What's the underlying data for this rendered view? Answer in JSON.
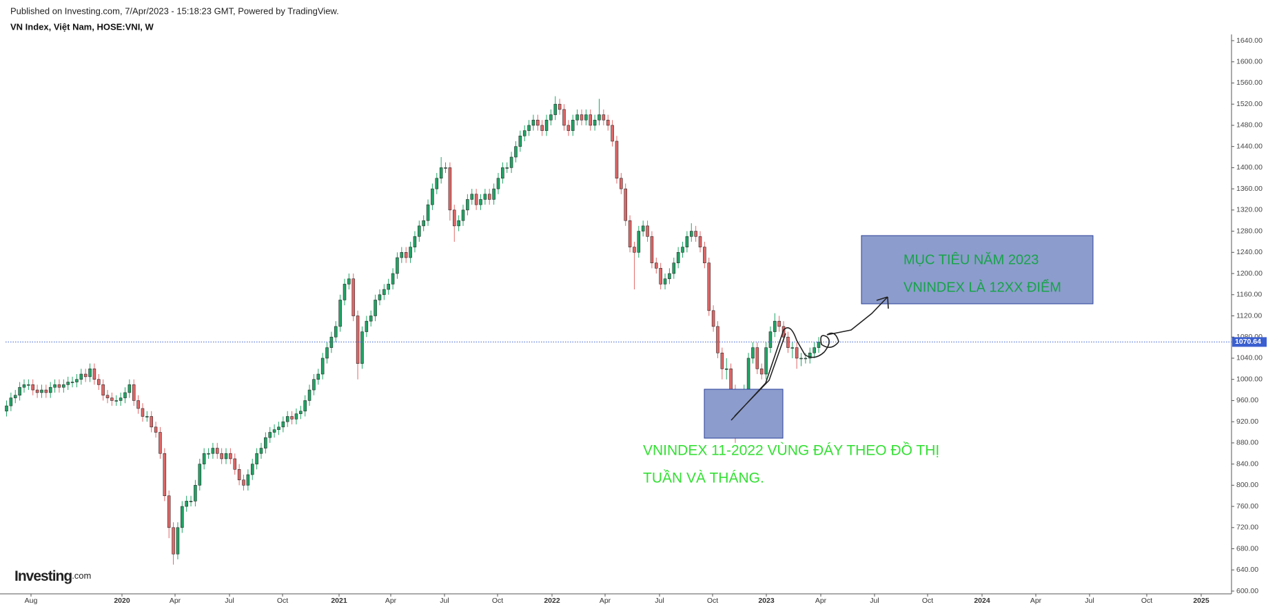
{
  "header": {
    "published": "Published on Investing.com, 7/Apr/2023 - 15:18:23 GMT, Powered by TradingView.",
    "symbol": "VN Index, Việt Nam, HOSE:VNI, W"
  },
  "logo": {
    "name": "Investing",
    "suffix": ".com"
  },
  "chart_data": {
    "type": "candlestick",
    "up_color": "#1fa464",
    "down_color": "#e06666",
    "outline_color": "#2b2b2b",
    "last_line_color": "#3a5fd0",
    "ylim": [
      600,
      1650
    ],
    "yticks": [
      {
        "value": 600,
        "label": "600.00"
      },
      {
        "value": 640,
        "label": "640.00"
      },
      {
        "value": 680,
        "label": "680.00"
      },
      {
        "value": 720,
        "label": "720.00"
      },
      {
        "value": 760,
        "label": "760.00"
      },
      {
        "value": 800,
        "label": "800.00"
      },
      {
        "value": 840,
        "label": "840.00"
      },
      {
        "value": 880,
        "label": "880.00"
      },
      {
        "value": 920,
        "label": "920.00"
      },
      {
        "value": 960,
        "label": "960.00"
      },
      {
        "value": 1000,
        "label": "1000.00"
      },
      {
        "value": 1040,
        "label": "1040.00"
      },
      {
        "value": 1080,
        "label": "1080.00"
      },
      {
        "value": 1120,
        "label": "1120.00"
      },
      {
        "value": 1160,
        "label": "1160.00"
      },
      {
        "value": 1200,
        "label": "1200.00"
      },
      {
        "value": 1240,
        "label": "1240.00"
      },
      {
        "value": 1280,
        "label": "1280.00"
      },
      {
        "value": 1320,
        "label": "1320.00"
      },
      {
        "value": 1360,
        "label": "1360.00"
      },
      {
        "value": 1400,
        "label": "1400.00"
      },
      {
        "value": 1440,
        "label": "1440.00"
      },
      {
        "value": 1480,
        "label": "1480.00"
      },
      {
        "value": 1520,
        "label": "1520.00"
      },
      {
        "value": 1560,
        "label": "1560.00"
      },
      {
        "value": 1600,
        "label": "1600.00"
      },
      {
        "value": 1640,
        "label": "1640.00"
      }
    ],
    "xtick_labels": [
      "Aug",
      "2020",
      "Apr",
      "Jul",
      "Oct",
      "2021",
      "Apr",
      "Jul",
      "Oct",
      "2022",
      "Apr",
      "Jul",
      "Oct",
      "2023",
      "Apr",
      "Jul",
      "Oct",
      "2024",
      "Apr",
      "Jul",
      "Oct",
      "2025"
    ],
    "open": [
      940,
      950,
      965,
      970,
      985,
      990,
      990,
      980,
      975,
      980,
      975,
      985,
      990,
      985,
      990,
      995,
      995,
      1000,
      1010,
      1005,
      1020,
      1000,
      990,
      970,
      965,
      960,
      960,
      965,
      975,
      990,
      960,
      945,
      930,
      930,
      910,
      900,
      860,
      780,
      720,
      670,
      720,
      760,
      770,
      770,
      800,
      840,
      860,
      860,
      870,
      860,
      850,
      860,
      850,
      830,
      810,
      800,
      820,
      840,
      860,
      870,
      890,
      900,
      905,
      910,
      920,
      930,
      925,
      935,
      940,
      960,
      980,
      1000,
      1010,
      1040,
      1060,
      1080,
      1100,
      1150,
      1180,
      1190,
      1120,
      1030,
      1090,
      1110,
      1120,
      1150,
      1160,
      1170,
      1180,
      1200,
      1230,
      1240,
      1230,
      1250,
      1270,
      1290,
      1300,
      1330,
      1360,
      1380,
      1400,
      1400,
      1320,
      1290,
      1300,
      1320,
      1340,
      1350,
      1330,
      1340,
      1350,
      1340,
      1360,
      1380,
      1400,
      1400,
      1420,
      1440,
      1460,
      1470,
      1480,
      1490,
      1480,
      1470,
      1490,
      1500,
      1520,
      1510,
      1480,
      1470,
      1490,
      1500,
      1490,
      1500,
      1480,
      1490,
      1500,
      1490,
      1480,
      1450,
      1380,
      1360,
      1300,
      1250,
      1240,
      1280,
      1290,
      1270,
      1220,
      1210,
      1180,
      1190,
      1200,
      1220,
      1240,
      1250,
      1270,
      1280,
      1270,
      1250,
      1220,
      1130,
      1100,
      1050,
      1020,
      1020,
      980,
      940,
      960,
      980,
      1040,
      1060,
      1020,
      1010,
      1060,
      1090,
      1110,
      1100,
      1080,
      1060,
      1060,
      1040,
      1040,
      1040,
      1050,
      1060
    ],
    "high": [
      960,
      975,
      980,
      995,
      1000,
      1000,
      1000,
      990,
      990,
      990,
      995,
      1000,
      1000,
      1000,
      1005,
      1005,
      1010,
      1020,
      1020,
      1030,
      1030,
      1010,
      1000,
      980,
      975,
      970,
      975,
      985,
      1000,
      1000,
      970,
      955,
      940,
      940,
      920,
      910,
      870,
      790,
      730,
      730,
      770,
      780,
      780,
      810,
      850,
      870,
      870,
      880,
      880,
      870,
      870,
      870,
      860,
      840,
      820,
      830,
      850,
      870,
      880,
      900,
      910,
      915,
      920,
      930,
      940,
      940,
      945,
      950,
      970,
      990,
      1010,
      1020,
      1050,
      1070,
      1090,
      1110,
      1160,
      1190,
      1200,
      1200,
      1130,
      1100,
      1120,
      1130,
      1160,
      1170,
      1180,
      1190,
      1210,
      1240,
      1250,
      1250,
      1260,
      1280,
      1300,
      1310,
      1340,
      1370,
      1390,
      1420,
      1410,
      1410,
      1330,
      1310,
      1330,
      1350,
      1360,
      1360,
      1350,
      1360,
      1360,
      1370,
      1390,
      1410,
      1410,
      1430,
      1450,
      1470,
      1480,
      1490,
      1500,
      1500,
      1490,
      1500,
      1510,
      1535,
      1530,
      1520,
      1490,
      1500,
      1510,
      1510,
      1510,
      1510,
      1500,
      1530,
      1510,
      1500,
      1490,
      1460,
      1390,
      1370,
      1310,
      1260,
      1290,
      1300,
      1300,
      1280,
      1230,
      1220,
      1200,
      1210,
      1230,
      1250,
      1260,
      1280,
      1295,
      1290,
      1280,
      1260,
      1230,
      1140,
      1110,
      1060,
      1040,
      1030,
      990,
      970,
      990,
      1050,
      1070,
      1070,
      1030,
      1070,
      1100,
      1125,
      1120,
      1110,
      1090,
      1070,
      1070,
      1050,
      1050,
      1060,
      1070,
      1080
    ],
    "low": [
      930,
      940,
      955,
      960,
      975,
      980,
      970,
      965,
      965,
      965,
      965,
      975,
      975,
      975,
      980,
      985,
      985,
      990,
      995,
      995,
      990,
      980,
      960,
      955,
      950,
      950,
      950,
      955,
      965,
      950,
      935,
      920,
      920,
      900,
      890,
      850,
      770,
      700,
      650,
      660,
      710,
      750,
      760,
      760,
      790,
      830,
      850,
      850,
      850,
      840,
      840,
      840,
      820,
      800,
      790,
      790,
      810,
      830,
      850,
      860,
      880,
      890,
      895,
      900,
      910,
      915,
      915,
      925,
      930,
      950,
      970,
      990,
      1000,
      1030,
      1050,
      1070,
      1090,
      1140,
      1170,
      1110,
      1000,
      1020,
      1080,
      1100,
      1110,
      1140,
      1150,
      1160,
      1170,
      1190,
      1220,
      1220,
      1220,
      1240,
      1260,
      1280,
      1290,
      1320,
      1350,
      1370,
      1390,
      1300,
      1260,
      1280,
      1290,
      1310,
      1330,
      1320,
      1320,
      1330,
      1330,
      1330,
      1350,
      1370,
      1390,
      1390,
      1410,
      1430,
      1450,
      1460,
      1470,
      1470,
      1460,
      1460,
      1480,
      1490,
      1500,
      1470,
      1460,
      1460,
      1480,
      1480,
      1480,
      1470,
      1470,
      1480,
      1480,
      1470,
      1440,
      1370,
      1350,
      1290,
      1240,
      1170,
      1230,
      1270,
      1260,
      1210,
      1200,
      1170,
      1170,
      1180,
      1190,
      1210,
      1230,
      1240,
      1260,
      1260,
      1240,
      1210,
      1120,
      1090,
      1040,
      1000,
      1000,
      960,
      880,
      930,
      950,
      970,
      1030,
      1010,
      1000,
      1000,
      1050,
      1080,
      1090,
      1070,
      1050,
      1040,
      1020,
      1025,
      1030,
      1030,
      1040,
      1050
    ],
    "close": [
      950,
      965,
      970,
      985,
      990,
      990,
      980,
      975,
      980,
      975,
      985,
      990,
      985,
      990,
      995,
      995,
      1000,
      1010,
      1005,
      1020,
      1000,
      990,
      970,
      965,
      960,
      960,
      965,
      975,
      990,
      960,
      945,
      930,
      930,
      910,
      900,
      860,
      780,
      720,
      670,
      720,
      760,
      770,
      770,
      800,
      840,
      860,
      860,
      870,
      860,
      850,
      860,
      850,
      830,
      810,
      800,
      820,
      840,
      860,
      870,
      890,
      900,
      905,
      910,
      920,
      930,
      925,
      935,
      940,
      960,
      980,
      1000,
      1010,
      1040,
      1060,
      1080,
      1100,
      1150,
      1180,
      1190,
      1120,
      1030,
      1090,
      1110,
      1120,
      1150,
      1160,
      1170,
      1180,
      1200,
      1230,
      1240,
      1230,
      1250,
      1270,
      1290,
      1300,
      1330,
      1360,
      1380,
      1400,
      1400,
      1320,
      1290,
      1300,
      1320,
      1340,
      1350,
      1330,
      1340,
      1350,
      1340,
      1360,
      1380,
      1400,
      1400,
      1420,
      1440,
      1460,
      1470,
      1480,
      1490,
      1480,
      1470,
      1490,
      1500,
      1520,
      1510,
      1480,
      1470,
      1490,
      1500,
      1490,
      1500,
      1480,
      1490,
      1500,
      1490,
      1480,
      1450,
      1380,
      1360,
      1300,
      1250,
      1240,
      1280,
      1290,
      1270,
      1220,
      1210,
      1180,
      1190,
      1200,
      1220,
      1240,
      1250,
      1270,
      1280,
      1270,
      1250,
      1220,
      1130,
      1100,
      1050,
      1020,
      1020,
      980,
      940,
      960,
      980,
      1040,
      1060,
      1020,
      1010,
      1060,
      1090,
      1110,
      1100,
      1080,
      1060,
      1060,
      1040,
      1040,
      1040,
      1050,
      1060,
      1070.64
    ],
    "annotations": [
      {
        "lines": [
          "MỤC TIÊU NĂM 2023",
          "VNINDEX LÀ 12XX ĐIỂM"
        ],
        "color": "#17a34a",
        "box_color": "#8c9ccc"
      },
      {
        "lines": [
          "VNINDEX 11-2022 VÙNG ĐÁY THEO ĐỒ THỊ",
          "TUẦN VÀ THÁNG."
        ],
        "color": "#33e033",
        "box_color": "#8c9ccc"
      }
    ]
  }
}
